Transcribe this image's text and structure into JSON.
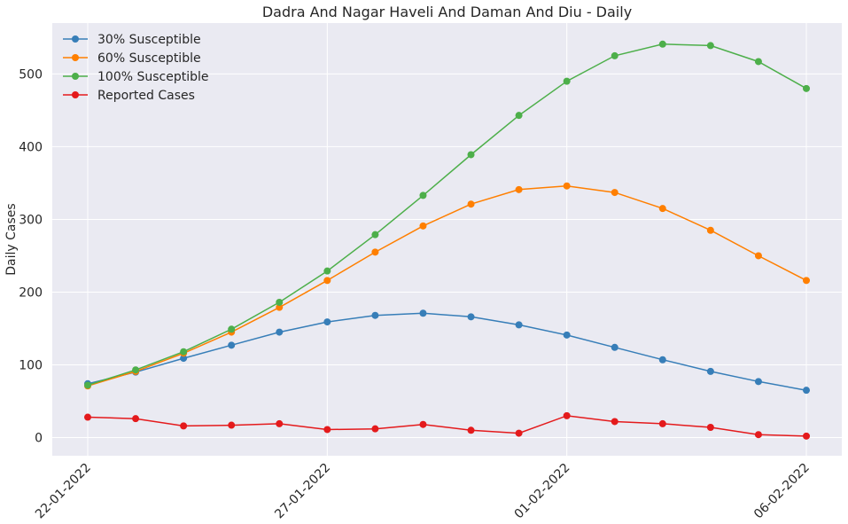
{
  "chart_data": {
    "type": "line",
    "title": "Dadra And Nagar Haveli And Daman And Diu - Daily",
    "xlabel": "",
    "ylabel": "Daily Cases",
    "x": [
      "22-01-2022",
      "23-01-2022",
      "24-01-2022",
      "25-01-2022",
      "26-01-2022",
      "27-01-2022",
      "28-01-2022",
      "29-01-2022",
      "30-01-2022",
      "31-01-2022",
      "01-02-2022",
      "02-02-2022",
      "03-02-2022",
      "04-02-2022",
      "05-02-2022",
      "06-02-2022"
    ],
    "xticks": [
      "22-01-2022",
      "27-01-2022",
      "01-02-2022",
      "06-02-2022"
    ],
    "yticks": [
      0,
      100,
      200,
      300,
      400,
      500
    ],
    "ylim": [
      -25,
      570
    ],
    "grid": true,
    "legend_position": "top-left",
    "series": [
      {
        "name": "30% Susceptible",
        "color": "#377eb8",
        "values": [
          74,
          90,
          109,
          127,
          145,
          159,
          168,
          171,
          166,
          155,
          141,
          124,
          107,
          91,
          77,
          65
        ]
      },
      {
        "name": "60% Susceptible",
        "color": "#ff7f00",
        "values": [
          71,
          91,
          116,
          145,
          179,
          216,
          255,
          291,
          321,
          341,
          346,
          337,
          315,
          285,
          250,
          216
        ]
      },
      {
        "name": "100% Susceptible",
        "color": "#4daf4a",
        "values": [
          72,
          93,
          118,
          149,
          186,
          229,
          279,
          333,
          389,
          443,
          490,
          525,
          541,
          539,
          517,
          480
        ]
      },
      {
        "name": "Reported Cases",
        "color": "#e41a1c",
        "values": [
          28,
          26,
          16,
          17,
          19,
          11,
          12,
          18,
          10,
          6,
          30,
          22,
          19,
          14,
          4,
          2
        ]
      }
    ]
  }
}
